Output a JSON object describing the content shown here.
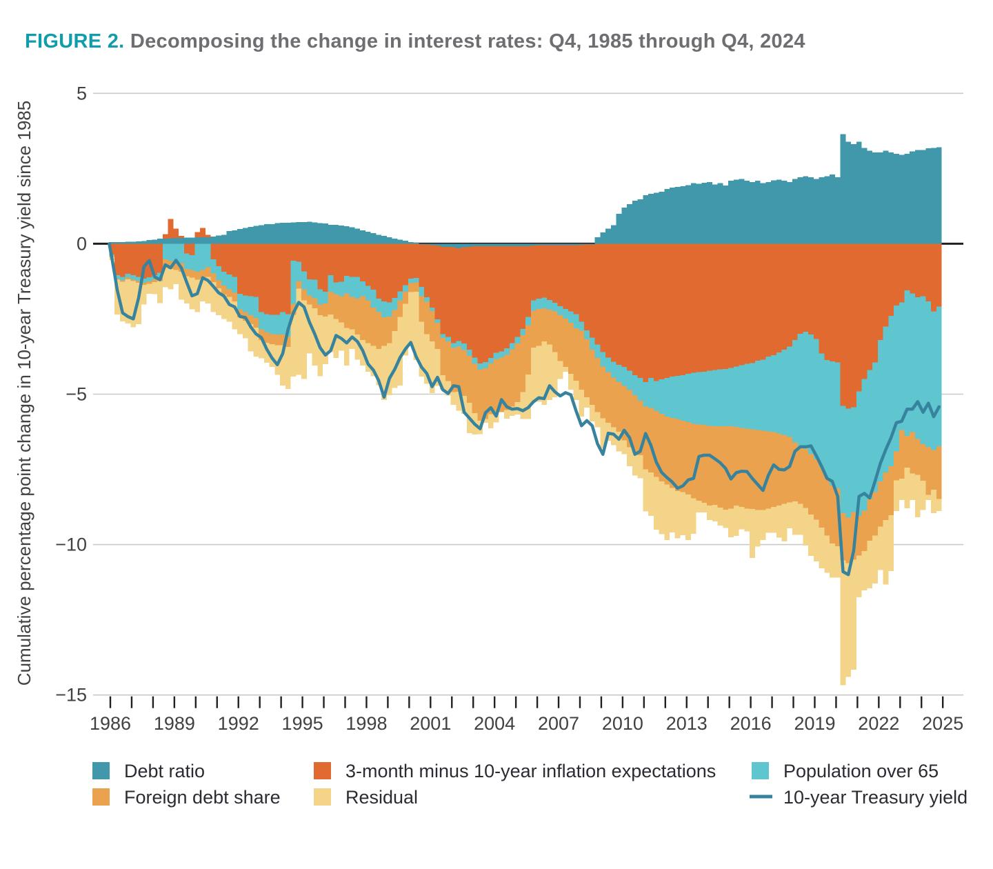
{
  "figure": {
    "label": "FIGURE 2.",
    "title": "Decomposing the change in interest rates: Q4, 1985 through Q4, 2024"
  },
  "colors": {
    "figure_label": "#0f9dac",
    "title_text": "#6d6e71",
    "axis_text": "#414042",
    "gridline": "#c9cac8",
    "zero_line": "#231f20",
    "tick_mark": "#231f20",
    "debt_ratio": "#4298ab",
    "inflation_expectations": "#e06a2f",
    "population_over_65": "#5fc5ce",
    "foreign_debt_share": "#eba24e",
    "residual": "#f4d488",
    "treasury_yield_line": "#37839e"
  },
  "chart_data": {
    "type": "bar",
    "subtype": "stacked-quarterly-with-line",
    "title": "FIGURE 2. Decomposing the change in interest rates: Q4, 1985 through Q4, 2024",
    "xlabel": "",
    "ylabel": "Cumulative percentage point change in 10-year Treasury yield since 1985",
    "ylim": [
      -15,
      5
    ],
    "y_ticks": [
      5,
      0,
      -5,
      -10,
      -15
    ],
    "x_start_year": 1986,
    "x_end_year": 2025,
    "x_tick_years_labeled": [
      1986,
      1989,
      1992,
      1995,
      1998,
      2001,
      2004,
      2007,
      2010,
      2013,
      2016,
      2019,
      2022,
      2025
    ],
    "quarters_per_year": 4,
    "n_quarters": 156,
    "grid": "horizontal-only",
    "legend_position": "bottom",
    "series": [
      {
        "name": "Debt ratio",
        "color": "#4298ab",
        "values": [
          0.05,
          0.06,
          0.06,
          0.07,
          0.07,
          0.08,
          0.09,
          0.12,
          0.14,
          0.17,
          0.17,
          0.18,
          0.19,
          0.19,
          0.2,
          0.2,
          0.21,
          0.22,
          0.22,
          0.24,
          0.27,
          0.3,
          0.42,
          0.45,
          0.49,
          0.53,
          0.56,
          0.59,
          0.62,
          0.65,
          0.65,
          0.68,
          0.7,
          0.7,
          0.71,
          0.72,
          0.72,
          0.73,
          0.71,
          0.69,
          0.67,
          0.63,
          0.63,
          0.61,
          0.58,
          0.55,
          0.5,
          0.45,
          0.4,
          0.35,
          0.3,
          0.26,
          0.22,
          0.17,
          0.13,
          0.1,
          0.06,
          0.04,
          -0.03,
          -0.03,
          -0.05,
          -0.06,
          -0.1,
          -0.1,
          -0.12,
          -0.15,
          -0.12,
          -0.1,
          -0.08,
          -0.08,
          -0.08,
          -0.08,
          -0.08,
          -0.08,
          -0.08,
          -0.08,
          -0.08,
          -0.08,
          -0.08,
          -0.06,
          -0.05,
          -0.05,
          -0.05,
          -0.05,
          -0.05,
          -0.05,
          -0.05,
          -0.05,
          -0.04,
          -0.03,
          -0.02,
          0.21,
          0.38,
          0.5,
          0.62,
          1.0,
          1.2,
          1.32,
          1.43,
          1.48,
          1.61,
          1.66,
          1.7,
          1.73,
          1.82,
          1.87,
          1.89,
          1.91,
          1.95,
          2.01,
          1.99,
          2.03,
          2.05,
          1.97,
          2.01,
          1.93,
          2.09,
          2.13,
          2.15,
          2.09,
          2.05,
          2.09,
          2.01,
          2.05,
          2.11,
          2.13,
          2.09,
          2.05,
          2.15,
          2.21,
          2.25,
          2.21,
          2.15,
          2.21,
          2.25,
          2.3,
          2.21,
          3.64,
          3.39,
          3.31,
          3.39,
          3.19,
          3.09,
          3.03,
          3.04,
          3.09,
          3.03,
          2.99,
          2.95,
          2.99,
          3.07,
          3.11,
          3.12,
          3.17,
          3.19,
          3.21
        ]
      },
      {
        "name": "3-month minus 10-year inflation expectations",
        "color": "#e06a2f",
        "values": [
          -0.36,
          -1.05,
          -1.1,
          -1.0,
          -1.05,
          -1.1,
          -1.16,
          -1.11,
          -1.05,
          -0.97,
          0.15,
          0.64,
          0.31,
          0.07,
          -0.32,
          -0.38,
          0.18,
          0.3,
          0.08,
          -0.52,
          -0.75,
          -0.93,
          -1.02,
          -1.1,
          -1.66,
          -1.72,
          -1.74,
          -1.77,
          -2.27,
          -2.34,
          -2.36,
          -2.36,
          -2.27,
          -2.34,
          -0.56,
          -0.6,
          -0.92,
          -1.18,
          -1.2,
          -1.52,
          -1.6,
          -1.05,
          -1.29,
          -1.26,
          -1.07,
          -1.1,
          -1.1,
          -1.25,
          -1.4,
          -1.53,
          -1.83,
          -1.92,
          -1.95,
          -1.8,
          -1.58,
          -1.38,
          -1.16,
          -1.14,
          -1.41,
          -1.75,
          -2.07,
          -2.45,
          -2.9,
          -3.0,
          -3.18,
          -3.08,
          -3.2,
          -3.42,
          -3.7,
          -3.9,
          -3.85,
          -3.72,
          -3.55,
          -3.5,
          -3.4,
          -3.22,
          -3.02,
          -2.75,
          -2.35,
          -1.82,
          -1.77,
          -1.74,
          -1.82,
          -1.91,
          -2.03,
          -2.12,
          -2.2,
          -2.29,
          -2.55,
          -2.85,
          -3.1,
          -3.35,
          -3.6,
          -3.78,
          -3.92,
          -4.03,
          -4.1,
          -4.22,
          -4.37,
          -4.46,
          -4.6,
          -4.46,
          -4.56,
          -4.51,
          -4.46,
          -4.41,
          -4.39,
          -4.37,
          -4.32,
          -4.29,
          -4.27,
          -4.25,
          -4.22,
          -4.2,
          -4.18,
          -4.16,
          -4.13,
          -4.08,
          -4.04,
          -3.99,
          -3.97,
          -3.89,
          -3.85,
          -3.75,
          -3.7,
          -3.61,
          -3.52,
          -3.42,
          -3.2,
          -2.99,
          -2.93,
          -3.02,
          -3.17,
          -3.65,
          -3.87,
          -3.91,
          -3.95,
          -5.39,
          -5.48,
          -5.44,
          -4.91,
          -4.5,
          -4.2,
          -3.95,
          -3.2,
          -2.75,
          -2.4,
          -2.05,
          -1.95,
          -1.55,
          -1.65,
          -1.78,
          -1.75,
          -1.92,
          -2.25,
          -2.09
        ]
      },
      {
        "name": "Population over 65",
        "color": "#5fc5ce",
        "values": [
          -0.06,
          -0.12,
          -0.12,
          -0.13,
          -0.14,
          -0.14,
          -0.14,
          -0.14,
          -0.13,
          -0.16,
          -0.52,
          -0.58,
          -0.61,
          -0.64,
          -0.52,
          -0.49,
          -0.93,
          -0.87,
          -0.78,
          -0.47,
          -0.47,
          -0.46,
          -0.49,
          -0.53,
          -0.52,
          -0.55,
          -0.64,
          -0.7,
          -0.58,
          -0.6,
          -0.64,
          -0.66,
          -0.75,
          -0.74,
          -1.45,
          -0.64,
          -0.6,
          -0.54,
          -0.61,
          -0.5,
          -0.38,
          -0.55,
          -0.39,
          -0.48,
          -0.58,
          -0.67,
          -0.72,
          -0.49,
          -0.48,
          -0.59,
          -0.44,
          -0.52,
          -0.47,
          -0.4,
          -0.3,
          -0.22,
          -0.15,
          -0.15,
          -0.3,
          -0.15,
          -0.12,
          -0.12,
          -0.13,
          -0.15,
          -0.16,
          -0.19,
          -0.21,
          -0.21,
          -0.21,
          -0.21,
          -0.21,
          -0.18,
          -0.21,
          -0.21,
          -0.21,
          -0.21,
          -0.21,
          -0.21,
          -0.28,
          -0.35,
          -0.35,
          -0.35,
          -0.32,
          -0.29,
          -0.29,
          -0.32,
          -0.38,
          -0.47,
          -0.3,
          -0.3,
          -0.4,
          -0.45,
          -0.48,
          -0.49,
          -0.53,
          -0.57,
          -0.62,
          -0.64,
          -0.66,
          -0.76,
          -0.81,
          -1.0,
          -0.99,
          -1.14,
          -1.28,
          -1.38,
          -1.44,
          -1.51,
          -1.61,
          -1.69,
          -1.74,
          -1.77,
          -1.83,
          -1.87,
          -1.89,
          -1.91,
          -1.94,
          -2.01,
          -2.08,
          -2.16,
          -2.2,
          -2.3,
          -2.36,
          -2.49,
          -2.56,
          -2.7,
          -2.84,
          -3.0,
          -3.4,
          -3.76,
          -3.89,
          -3.98,
          -4.0,
          -3.78,
          -3.91,
          -4.13,
          -4.18,
          -3.56,
          -3.62,
          -3.48,
          -4.14,
          -4.37,
          -4.3,
          -4.3,
          -4.7,
          -4.85,
          -5.0,
          -4.85,
          -4.24,
          -4.84,
          -4.61,
          -4.71,
          -4.91,
          -4.84,
          -4.61,
          -4.64
        ]
      },
      {
        "name": "Foreign debt share",
        "color": "#eba24e",
        "values": [
          -0.02,
          -0.03,
          -0.04,
          -0.05,
          -0.05,
          -0.06,
          -0.07,
          -0.08,
          -0.09,
          -0.11,
          -0.26,
          -0.26,
          -0.26,
          -0.29,
          -0.24,
          -0.26,
          -0.26,
          -0.29,
          -0.32,
          -0.29,
          -0.26,
          -0.3,
          -0.26,
          -0.29,
          -0.26,
          -0.29,
          -0.29,
          -0.32,
          -0.35,
          -0.35,
          -0.34,
          -0.35,
          -0.35,
          -0.35,
          -0.35,
          -0.25,
          -0.36,
          -0.3,
          -0.34,
          -0.36,
          -0.44,
          -0.75,
          -0.82,
          -0.88,
          -1.15,
          -1.08,
          -1.2,
          -1.46,
          -1.42,
          -1.28,
          -1.23,
          -0.96,
          -0.88,
          -0.7,
          -0.55,
          -0.4,
          -0.3,
          -0.3,
          -0.85,
          -1.08,
          -1.01,
          -0.87,
          -1.24,
          -1.32,
          -1.47,
          -1.5,
          -1.53,
          -1.56,
          -1.64,
          -1.69,
          -1.69,
          -1.69,
          -1.75,
          -1.8,
          -1.84,
          -1.9,
          -1.95,
          -1.89,
          -1.64,
          -1.22,
          -1.23,
          -1.11,
          -1.16,
          -1.35,
          -1.53,
          -1.61,
          -1.69,
          -1.74,
          -1.96,
          -1.92,
          -1.83,
          -1.8,
          -1.72,
          -1.68,
          -1.65,
          -1.65,
          -1.82,
          -1.9,
          -1.91,
          -1.81,
          -2.09,
          -2.14,
          -2.2,
          -2.25,
          -2.26,
          -2.33,
          -2.39,
          -2.37,
          -2.41,
          -2.48,
          -2.53,
          -2.59,
          -2.65,
          -2.61,
          -2.7,
          -2.77,
          -2.73,
          -2.61,
          -2.63,
          -2.65,
          -2.65,
          -2.66,
          -2.64,
          -2.56,
          -2.49,
          -2.39,
          -2.29,
          -2.18,
          -1.97,
          -1.89,
          -1.96,
          -2.0,
          -2.0,
          -2.01,
          -1.92,
          -1.92,
          -1.92,
          -1.58,
          -1.52,
          -1.58,
          -1.32,
          -1.34,
          -1.37,
          -1.45,
          -1.5,
          -1.58,
          -1.62,
          -0.97,
          -1.62,
          -1.05,
          -1.38,
          -1.19,
          -1.22,
          -1.59,
          -1.32,
          -1.75
        ]
      },
      {
        "name": "Residual",
        "color": "#f4d488",
        "values": [
          -0.1,
          -1.15,
          -1.32,
          -1.47,
          -1.54,
          -1.37,
          -0.65,
          -0.34,
          -0.4,
          -0.73,
          -0.67,
          -0.67,
          -0.47,
          -0.93,
          -0.9,
          -1.05,
          -1.08,
          -0.76,
          -0.88,
          -0.99,
          -0.9,
          -0.81,
          -0.82,
          -0.93,
          -0.56,
          -0.58,
          -0.91,
          -0.96,
          -0.61,
          -0.67,
          -0.76,
          -0.99,
          -1.34,
          -1.4,
          -2.06,
          -2.87,
          -2.62,
          -1.63,
          -1.9,
          -2.02,
          -1.58,
          -1.25,
          -1.3,
          -0.93,
          -1.25,
          -0.65,
          -0.83,
          -0.85,
          -0.95,
          -1.0,
          -1.2,
          -1.8,
          -1.73,
          -1.89,
          -2.28,
          -1.72,
          -1.79,
          -2.27,
          -1.83,
          -1.65,
          -1.71,
          -1.23,
          -0.48,
          -0.48,
          -0.42,
          -0.63,
          -0.59,
          -1.0,
          -0.71,
          -0.45,
          -0.12,
          -0.46,
          -0.35,
          -0.02,
          -0.28,
          -0.31,
          -0.42,
          -0.9,
          -1.48,
          -1.83,
          -1.85,
          -2.11,
          -1.85,
          -1.5,
          -0.6,
          -0.15,
          -0.53,
          -0.65,
          -0.9,
          -0.35,
          -0.55,
          -0.5,
          -1.0,
          -0.6,
          -0.6,
          -0.65,
          -0.46,
          -0.64,
          -0.76,
          -0.77,
          -1.4,
          -1.45,
          -1.75,
          -1.75,
          -1.85,
          -1.48,
          -1.57,
          -1.44,
          -1.51,
          -1.18,
          -0.39,
          -0.32,
          -0.48,
          -0.55,
          -0.6,
          -0.61,
          -0.96,
          -1.01,
          -0.74,
          -0.76,
          -1.62,
          -1.22,
          -1.0,
          -0.81,
          -0.86,
          -1.07,
          -1.24,
          -0.86,
          -1.11,
          -1.04,
          -1.25,
          -1.38,
          -1.39,
          -1.35,
          -1.24,
          -1.14,
          -1.05,
          -4.15,
          -3.78,
          -3.66,
          -1.38,
          -1.31,
          -1.58,
          -1.59,
          -1.45,
          -2.15,
          -1.86,
          -1.02,
          -0.71,
          -1.35,
          -0.88,
          -1.41,
          -0.97,
          -0.17,
          -0.77,
          -0.41
        ]
      }
    ],
    "line_series": {
      "name": "10-year Treasury yield",
      "color": "#37839e",
      "values": [
        -0.48,
        -1.55,
        -2.3,
        -2.42,
        -2.5,
        -1.8,
        -0.76,
        -0.56,
        -1.1,
        -1.2,
        -0.7,
        -0.8,
        -0.55,
        -0.8,
        -1.28,
        -1.73,
        -1.66,
        -1.13,
        -1.22,
        -1.42,
        -1.63,
        -1.74,
        -2.02,
        -2.1,
        -2.42,
        -2.45,
        -2.76,
        -3.0,
        -3.12,
        -3.5,
        -3.8,
        -4.02,
        -3.65,
        -2.85,
        -2.3,
        -1.95,
        -2.1,
        -2.6,
        -3.0,
        -3.45,
        -3.7,
        -3.55,
        -3.05,
        -3.15,
        -3.3,
        -3.1,
        -3.25,
        -3.55,
        -4.0,
        -4.2,
        -4.55,
        -5.1,
        -4.48,
        -4.17,
        -3.78,
        -3.5,
        -3.28,
        -3.75,
        -4.1,
        -4.31,
        -4.75,
        -4.44,
        -4.85,
        -4.98,
        -4.72,
        -4.75,
        -5.6,
        -5.8,
        -6.0,
        -6.15,
        -5.62,
        -5.45,
        -5.73,
        -5.18,
        -5.42,
        -5.5,
        -5.48,
        -5.55,
        -5.45,
        -5.25,
        -5.12,
        -5.15,
        -4.72,
        -4.92,
        -5.06,
        -4.95,
        -5.02,
        -5.57,
        -6.05,
        -5.88,
        -6.05,
        -6.65,
        -7.0,
        -6.3,
        -6.33,
        -6.5,
        -6.2,
        -6.45,
        -7.0,
        -6.9,
        -6.31,
        -6.7,
        -7.25,
        -7.6,
        -7.77,
        -7.92,
        -8.13,
        -8.05,
        -7.85,
        -7.8,
        -7.07,
        -7.03,
        -7.03,
        -7.15,
        -7.28,
        -7.47,
        -7.82,
        -7.61,
        -7.56,
        -7.57,
        -7.8,
        -8.0,
        -8.2,
        -7.7,
        -7.35,
        -7.5,
        -7.52,
        -7.4,
        -6.9,
        -6.75,
        -6.75,
        -6.72,
        -7.05,
        -7.4,
        -7.8,
        -7.9,
        -8.4,
        -10.9,
        -11.0,
        -10.2,
        -8.4,
        -8.3,
        -8.45,
        -7.9,
        -7.3,
        -6.85,
        -6.45,
        -5.95,
        -5.9,
        -5.5,
        -5.5,
        -5.25,
        -5.6,
        -5.3,
        -5.75,
        -5.42
      ]
    }
  },
  "legend": {
    "items": [
      {
        "label": "Debt ratio",
        "swatch": "square",
        "color": "#4298ab",
        "col": 0,
        "row": 0
      },
      {
        "label": "3-month minus 10-year inflation expectations",
        "swatch": "square",
        "color": "#e06a2f",
        "col": 1,
        "row": 0
      },
      {
        "label": "Population over 65",
        "swatch": "square",
        "color": "#5fc5ce",
        "col": 2,
        "row": 0
      },
      {
        "label": "Foreign debt share",
        "swatch": "square",
        "color": "#eba24e",
        "col": 0,
        "row": 1
      },
      {
        "label": "Residual",
        "swatch": "square",
        "color": "#f4d488",
        "col": 1,
        "row": 1
      },
      {
        "label": "10-year Treasury yield",
        "swatch": "line",
        "color": "#37839e",
        "col": 2,
        "row": 1
      }
    ]
  }
}
